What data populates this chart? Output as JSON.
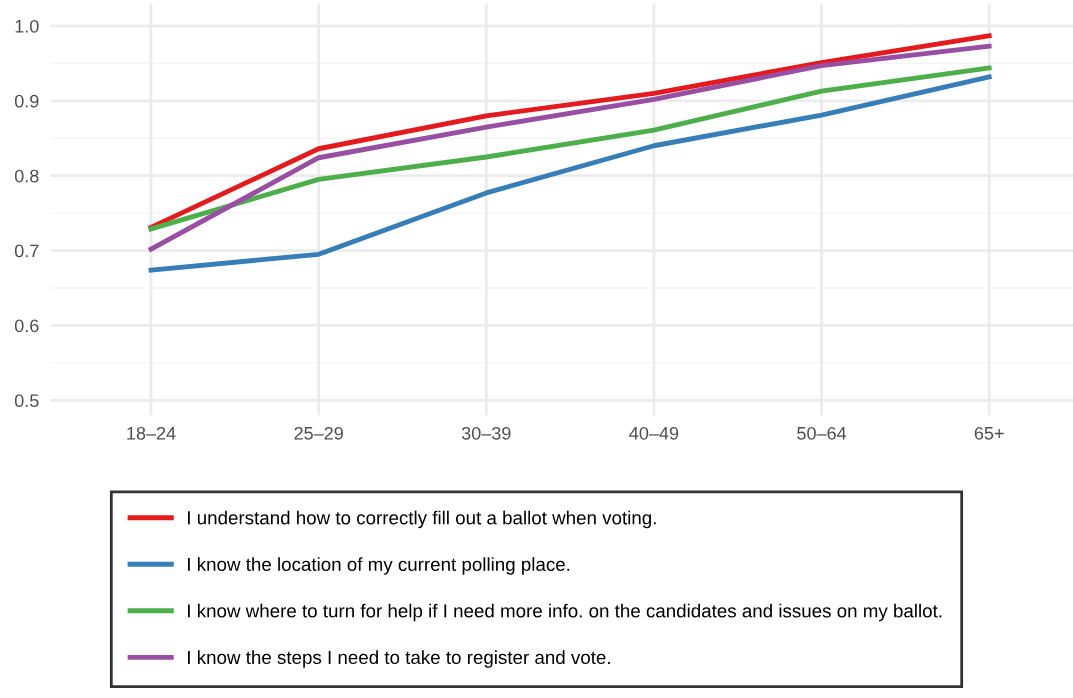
{
  "chart_data": {
    "type": "line",
    "categories": [
      "18–24",
      "25–29",
      "30–39",
      "40–49",
      "50–64",
      "65+"
    ],
    "series": [
      {
        "name": "I understand how to correctly fill out a ballot when voting.",
        "color": "#e41a1c",
        "values": [
          0.731,
          0.836,
          0.88,
          0.91,
          0.951,
          0.987
        ]
      },
      {
        "name": "I know the location of my current polling place.",
        "color": "#377eb8",
        "values": [
          0.674,
          0.695,
          0.777,
          0.84,
          0.881,
          0.932
        ]
      },
      {
        "name": "I know where to turn for help if I need more info. on the candidates and issues on my ballot.",
        "color": "#4daf4a",
        "values": [
          0.729,
          0.795,
          0.825,
          0.861,
          0.913,
          0.944
        ]
      },
      {
        "name": "I know the steps I need to take to register and vote.",
        "color": "#984ea3",
        "values": [
          0.702,
          0.824,
          0.865,
          0.902,
          0.947,
          0.973
        ]
      }
    ],
    "ylim": [
      0.48,
      1.03
    ],
    "yticks": [
      {
        "value": 0.5,
        "label": "0.5"
      },
      {
        "value": 0.55,
        "label": null
      },
      {
        "value": 0.6,
        "label": "0.6"
      },
      {
        "value": 0.65,
        "label": null
      },
      {
        "value": 0.7,
        "label": "0.7"
      },
      {
        "value": 0.75,
        "label": null
      },
      {
        "value": 0.8,
        "label": "0.8"
      },
      {
        "value": 0.85,
        "label": null
      },
      {
        "value": 0.9,
        "label": "0.9"
      },
      {
        "value": 0.95,
        "label": null
      },
      {
        "value": 1.0,
        "label": "1.0"
      }
    ],
    "grid": true,
    "legend": "bottom",
    "line_style": "solid",
    "marker": "none"
  }
}
